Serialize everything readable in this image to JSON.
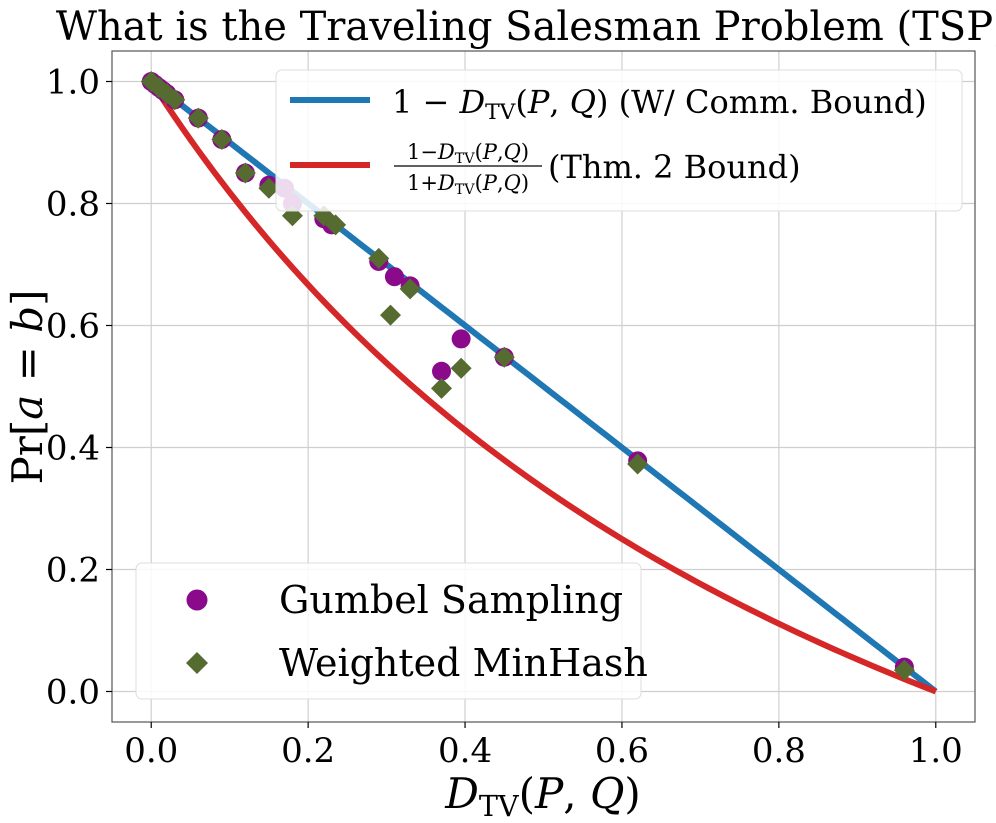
{
  "chart_data": {
    "type": "scatter",
    "title": "What is the Traveling Salesman Problem (TSP)?",
    "xlabel": "D_TV(P, Q)",
    "ylabel": "Pr[a = b]",
    "xlim": [
      -0.05,
      1.05
    ],
    "ylim": [
      -0.05,
      1.05
    ],
    "xticks": [
      "0.0",
      "0.2",
      "0.4",
      "0.6",
      "0.8",
      "1.0"
    ],
    "yticks": [
      "0.0",
      "0.2",
      "0.4",
      "0.6",
      "0.8",
      "1.0"
    ],
    "grid": true,
    "curves": [
      {
        "name": "1 − D_TV(P, Q) (W/ Comm. Bound)",
        "formula": "1 - x",
        "color": "#1f77b4"
      },
      {
        "name": "(1−D_TV(P,Q)) / (1+D_TV(P,Q)) (Thm. 2 Bound)",
        "formula": "(1 - x) / (1 + x)",
        "color": "#d62728"
      }
    ],
    "series": [
      {
        "name": "Gumbel Sampling",
        "marker": "circle",
        "color": "#8b0a8b",
        "points": [
          [
            0.0,
            1.0
          ],
          [
            0.005,
            0.995
          ],
          [
            0.01,
            0.99
          ],
          [
            0.015,
            0.985
          ],
          [
            0.02,
            0.98
          ],
          [
            0.03,
            0.97
          ],
          [
            0.06,
            0.94
          ],
          [
            0.09,
            0.905
          ],
          [
            0.12,
            0.85
          ],
          [
            0.15,
            0.83
          ],
          [
            0.17,
            0.825
          ],
          [
            0.18,
            0.8
          ],
          [
            0.22,
            0.775
          ],
          [
            0.23,
            0.765
          ],
          [
            0.29,
            0.705
          ],
          [
            0.31,
            0.68
          ],
          [
            0.33,
            0.665
          ],
          [
            0.37,
            0.525
          ],
          [
            0.395,
            0.578
          ],
          [
            0.45,
            0.548
          ],
          [
            0.62,
            0.378
          ],
          [
            0.96,
            0.04
          ]
        ]
      },
      {
        "name": "Weighted MinHash",
        "marker": "diamond",
        "color": "#556b2f",
        "points": [
          [
            0.0,
            1.0
          ],
          [
            0.01,
            0.99
          ],
          [
            0.02,
            0.98
          ],
          [
            0.03,
            0.97
          ],
          [
            0.06,
            0.94
          ],
          [
            0.09,
            0.905
          ],
          [
            0.12,
            0.85
          ],
          [
            0.15,
            0.825
          ],
          [
            0.18,
            0.78
          ],
          [
            0.22,
            0.78
          ],
          [
            0.235,
            0.765
          ],
          [
            0.29,
            0.71
          ],
          [
            0.305,
            0.617
          ],
          [
            0.33,
            0.66
          ],
          [
            0.37,
            0.497
          ],
          [
            0.395,
            0.53
          ],
          [
            0.45,
            0.548
          ],
          [
            0.62,
            0.373
          ],
          [
            0.96,
            0.035
          ]
        ]
      }
    ],
    "legend_top": {
      "placement": "top-right",
      "entries": [
        {
          "kind": "line",
          "color": "#1f77b4",
          "parts": [
            {
              "t": "1 − "
            },
            {
              "t": "D",
              "i": true
            },
            {
              "t": "TV",
              "sub": true
            },
            {
              "t": "("
            },
            {
              "t": "P",
              "i": true
            },
            {
              "t": ", "
            },
            {
              "t": "Q",
              "i": true
            },
            {
              "t": ") (W/ Comm. Bound)"
            }
          ]
        },
        {
          "kind": "fraction",
          "color": "#d62728",
          "num": [
            {
              "t": "1−"
            },
            {
              "t": "D",
              "i": true
            },
            {
              "t": "TV",
              "sub": true
            },
            {
              "t": "("
            },
            {
              "t": "P",
              "i": true
            },
            {
              "t": ","
            },
            {
              "t": "Q",
              "i": true
            },
            {
              "t": ")"
            }
          ],
          "den": [
            {
              "t": "1+"
            },
            {
              "t": "D",
              "i": true
            },
            {
              "t": "TV",
              "sub": true
            },
            {
              "t": "("
            },
            {
              "t": "P",
              "i": true
            },
            {
              "t": ","
            },
            {
              "t": "Q",
              "i": true
            },
            {
              "t": ")"
            }
          ],
          "suffix": " (Thm. 2 Bound)"
        }
      ]
    },
    "legend_bottom": {
      "placement": "lower-left",
      "entries": [
        "Gumbel Sampling",
        "Weighted MinHash"
      ]
    },
    "xlabel_parts": [
      {
        "t": "D",
        "i": true
      },
      {
        "t": "TV",
        "sub": true
      },
      {
        "t": "("
      },
      {
        "t": "P",
        "i": true
      },
      {
        "t": ", "
      },
      {
        "t": "Q",
        "i": true
      },
      {
        "t": ")"
      }
    ],
    "ylabel_parts": [
      {
        "t": "Pr["
      },
      {
        "t": "a",
        "i": true
      },
      {
        "t": " = "
      },
      {
        "t": "b",
        "i": true
      },
      {
        "t": "]"
      }
    ]
  }
}
